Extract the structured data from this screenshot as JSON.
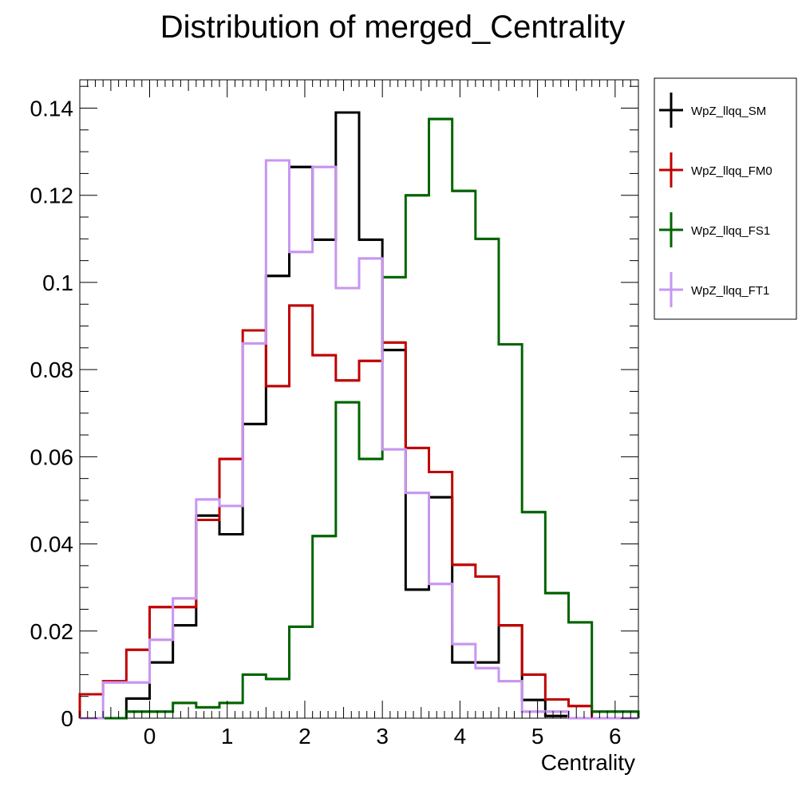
{
  "chart_data": {
    "type": "histogram-step",
    "title": "Distribution of merged_Centrality",
    "xlabel": "Centrality",
    "ylabel": "",
    "xlim": [
      -0.9,
      6.3
    ],
    "ylim": [
      0,
      0.1465
    ],
    "x_ticks": [
      0,
      1,
      2,
      3,
      4,
      5,
      6
    ],
    "y_ticks": [
      0,
      0.02,
      0.04,
      0.06,
      0.08,
      0.1,
      0.12,
      0.14
    ],
    "y_tick_labels": [
      "0",
      "0.02",
      "0.04",
      "0.06",
      "0.08",
      "0.1",
      "0.12",
      "0.14"
    ],
    "bin_edges": [
      -0.9,
      -0.6,
      -0.3,
      0.0,
      0.3,
      0.6,
      0.9,
      1.2,
      1.5,
      1.8,
      2.1,
      2.4,
      2.7,
      3.0,
      3.3,
      3.6,
      3.9,
      4.2,
      4.5,
      4.8,
      5.1,
      5.4,
      5.7,
      6.0,
      6.3
    ],
    "grid": false,
    "legend_position": "outside-right-top",
    "series": [
      {
        "name": "WpZ_llqq_SM",
        "color": "#000000",
        "values": [
          0,
          0,
          0.0045,
          0.0128,
          0.0213,
          0.0465,
          0.0422,
          0.0675,
          0.1015,
          0.1265,
          0.1098,
          0.139,
          0.1098,
          0.0845,
          0.0295,
          0.0507,
          0.0128,
          0.0128,
          0.0213,
          0.0042,
          0.0005,
          0,
          0,
          0
        ]
      },
      {
        "name": "WpZ_llqq_FM0",
        "color": "#c00000",
        "values": [
          0.0055,
          0.0085,
          0.0157,
          0.0255,
          0.0255,
          0.0455,
          0.0595,
          0.089,
          0.0762,
          0.0947,
          0.0833,
          0.0775,
          0.082,
          0.0862,
          0.062,
          0.0565,
          0.0352,
          0.0325,
          0.0213,
          0.01,
          0.0043,
          0.0028,
          0,
          0
        ]
      },
      {
        "name": "WpZ_llqq_FS1",
        "color": "#006400",
        "values": [
          0,
          0,
          0.0015,
          0.0015,
          0.0035,
          0.0025,
          0.0035,
          0.01,
          0.009,
          0.021,
          0.0418,
          0.0725,
          0.0595,
          0.1012,
          0.12,
          0.1375,
          0.121,
          0.11,
          0.0858,
          0.0473,
          0.0287,
          0.022,
          0.0015,
          0.0015
        ]
      },
      {
        "name": "WpZ_llqq_FT1",
        "color": "#c896f0",
        "values": [
          0,
          0.0082,
          0.0082,
          0.018,
          0.0275,
          0.0502,
          0.0487,
          0.086,
          0.128,
          0.107,
          0.1265,
          0.0987,
          0.1055,
          0.0617,
          0.0517,
          0.0308,
          0.017,
          0.0115,
          0.0085,
          0.0015,
          0.0015,
          0,
          0,
          0
        ]
      }
    ]
  }
}
